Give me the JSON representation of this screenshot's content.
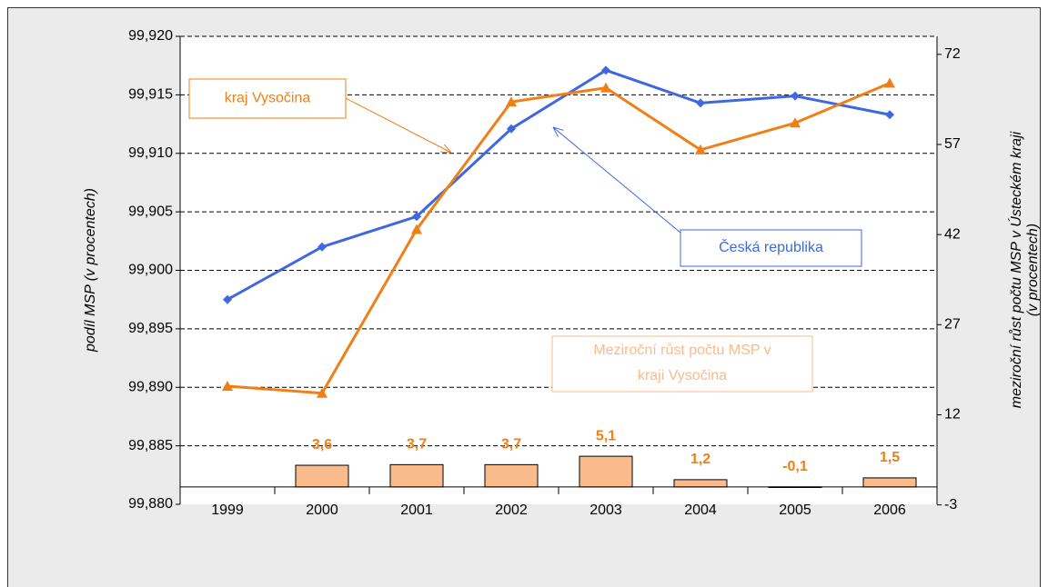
{
  "chart_data": {
    "type": "line",
    "categories": [
      "1999",
      "2000",
      "2001",
      "2002",
      "2003",
      "2004",
      "2005",
      "2006"
    ],
    "ylabel": "podíl  MSP (v procentech)",
    "y2label": [
      "meziroční růst počtu MSP v Ústeckém kraji",
      "(v procentech)"
    ],
    "ylim": [
      99.88,
      99.92
    ],
    "yticks": [
      {
        "value": 99.88,
        "label": "99,880"
      },
      {
        "value": 99.885,
        "label": "99,885"
      },
      {
        "value": 99.89,
        "label": "99,890"
      },
      {
        "value": 99.895,
        "label": "99,895"
      },
      {
        "value": 99.9,
        "label": "99,900"
      },
      {
        "value": 99.905,
        "label": "99,905"
      },
      {
        "value": 99.91,
        "label": "99,910"
      },
      {
        "value": 99.915,
        "label": "99,915"
      },
      {
        "value": 99.92,
        "label": "99,920"
      }
    ],
    "y2lim": [
      -2.9,
      75
    ],
    "y2ticks": [
      -3,
      12,
      27,
      42,
      57,
      72
    ],
    "grid": true,
    "series": [
      {
        "name": "Česká republika",
        "type": "line",
        "marker": "diamond",
        "color": "#3f67e3",
        "values": [
          99.8975,
          99.902,
          99.9046,
          99.9121,
          99.9171,
          99.9143,
          99.9149,
          99.9133
        ]
      },
      {
        "name": "kraj Vysočina",
        "type": "line",
        "marker": "triangle",
        "color": "#f07f16",
        "values": [
          99.8901,
          99.8895,
          99.9035,
          99.9144,
          99.9156,
          99.9103,
          99.9126,
          99.916
        ]
      },
      {
        "name": [
          "Meziroční růst počtu MSP v",
          "kraji Vysočina"
        ],
        "type": "bar",
        "axis": "y2",
        "color": "#f9bb8c",
        "label_color": "#f07f16",
        "values": [
          null,
          3.6,
          3.7,
          3.7,
          5.1,
          1.2,
          -0.1,
          1.5
        ],
        "value_labels": [
          null,
          "3,6",
          "3,7",
          "3,7",
          "5,1",
          "1,2",
          "-0,1",
          "1,5"
        ]
      }
    ]
  }
}
